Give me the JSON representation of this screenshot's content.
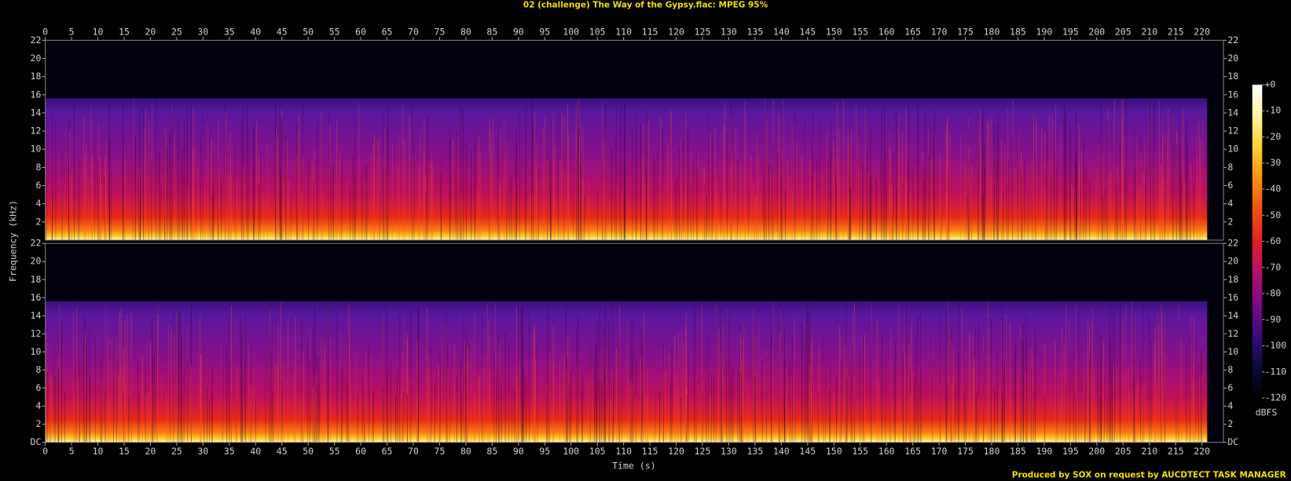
{
  "chart_data": {
    "type": "spectrogram",
    "title": "02 (challenge) The Way of the Gypsy.flac: MPEG 95%",
    "xlabel": "Time (s)",
    "ylabel": "Frequency (kHz)",
    "footer": "Produced by SOX on request by AUCDTECT TASK MANAGER",
    "xlim": [
      0,
      224.1
    ],
    "xticks": [
      0,
      5,
      10,
      15,
      20,
      25,
      30,
      35,
      40,
      45,
      50,
      55,
      60,
      65,
      70,
      75,
      80,
      85,
      90,
      95,
      100,
      105,
      110,
      115,
      120,
      125,
      130,
      135,
      140,
      145,
      150,
      155,
      160,
      165,
      170,
      175,
      180,
      185,
      190,
      195,
      200,
      205,
      210,
      215,
      220
    ],
    "ylim": [
      0,
      22
    ],
    "panels": [
      {
        "yticks": [
          2,
          4,
          6,
          8,
          10,
          12,
          14,
          16,
          18,
          20,
          22
        ]
      },
      {
        "yticks": [
          {
            "value": 0,
            "label": "DC"
          },
          2,
          4,
          6,
          8,
          10,
          12,
          14,
          16,
          18,
          20,
          22
        ]
      }
    ],
    "duration_s": 221,
    "cutoff_khz": 15.6,
    "colorbar": {
      "label": "dBFS",
      "lim": [
        -120,
        0
      ],
      "ticks": [
        {
          "value": 0,
          "label": "+0"
        },
        -10,
        -20,
        -30,
        -40,
        -50,
        -60,
        -70,
        -80,
        -90,
        -100,
        -110,
        -120
      ],
      "colors": [
        "#000000",
        "#0a0a40",
        "#3a0a7a",
        "#7a0a8a",
        "#b0106a",
        "#e0202a",
        "#f05010",
        "#f89010",
        "#fcd030",
        "#fff5a0",
        "#ffffff"
      ]
    }
  }
}
